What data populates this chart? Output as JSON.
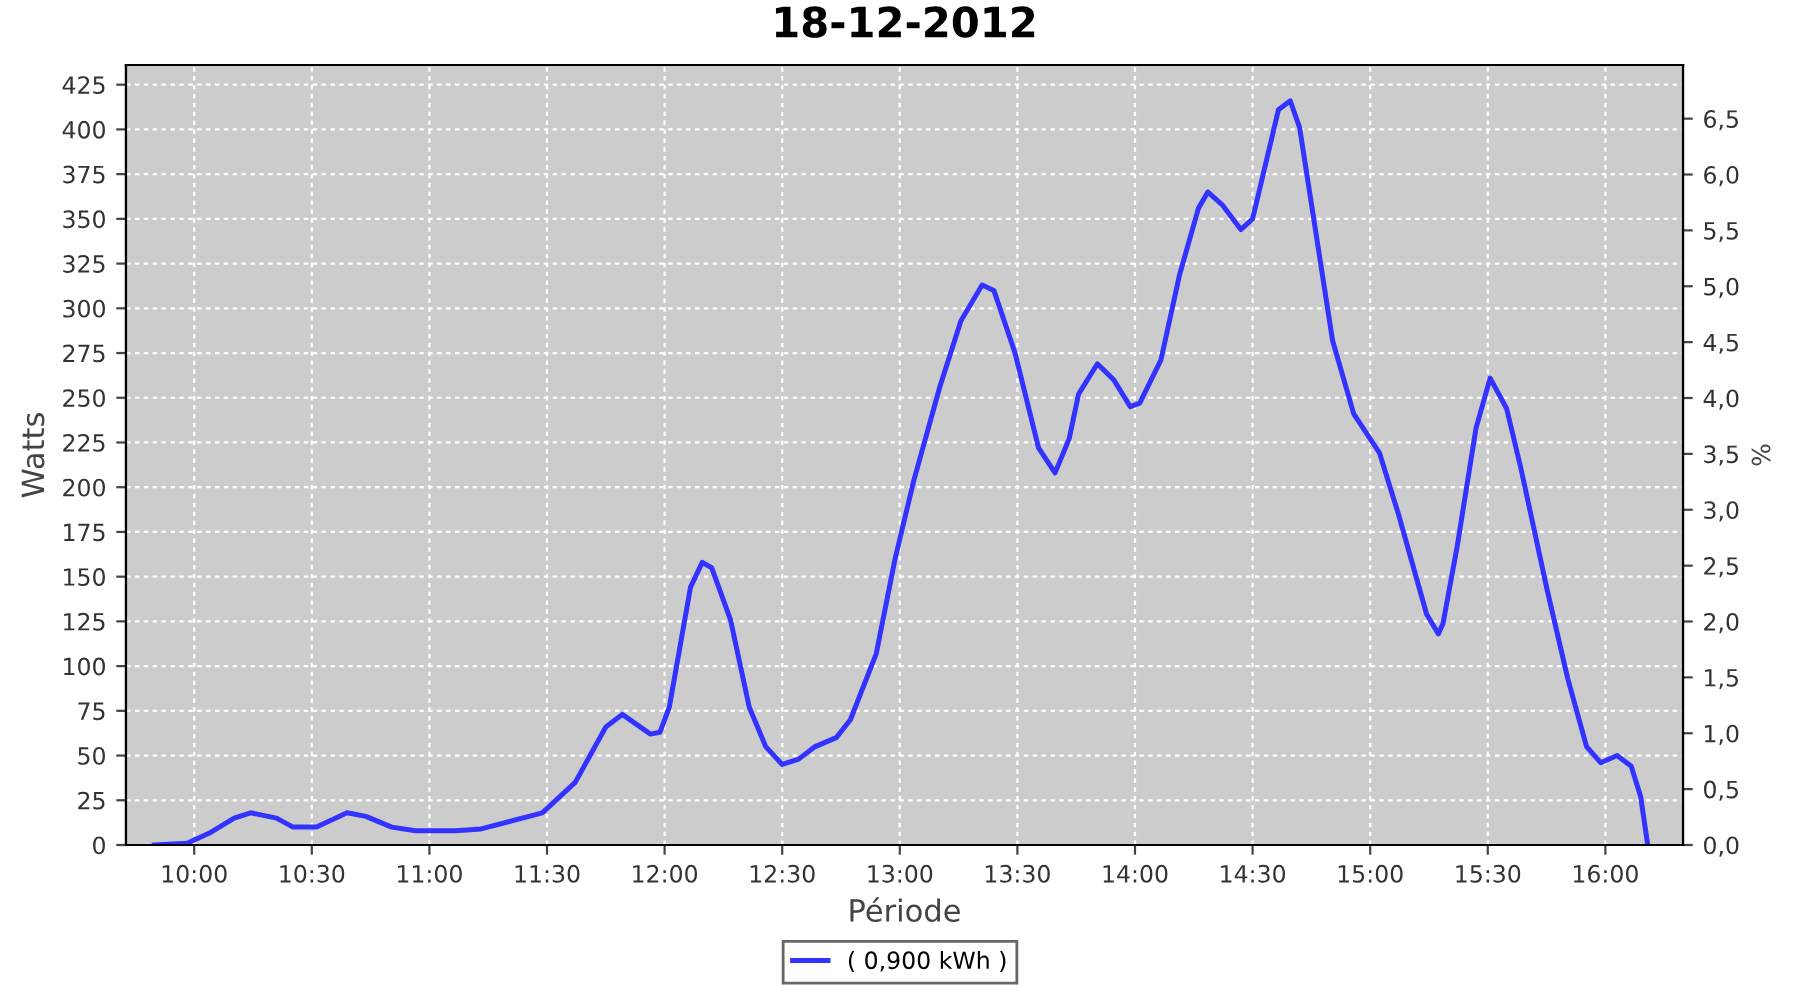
{
  "chart_data": {
    "type": "line",
    "title": "18-12-2012",
    "xlabel": "Période",
    "ylabel": "Watts",
    "y2label": "%",
    "x": [
      9.83,
      9.97,
      10.07,
      10.17,
      10.24,
      10.35,
      10.42,
      10.52,
      10.65,
      10.73,
      10.84,
      10.94,
      11.11,
      11.22,
      11.48,
      11.62,
      11.75,
      11.82,
      11.94,
      11.98,
      12.02,
      12.11,
      12.16,
      12.2,
      12.28,
      12.36,
      12.43,
      12.5,
      12.57,
      12.64,
      12.73,
      12.79,
      12.9,
      12.98,
      13.06,
      13.17,
      13.26,
      13.35,
      13.4,
      13.49,
      13.59,
      13.66,
      13.72,
      13.76,
      13.84,
      13.91,
      13.98,
      14.02,
      14.11,
      14.19,
      14.27,
      14.31,
      14.37,
      14.45,
      14.5,
      14.61,
      14.66,
      14.7,
      14.76,
      14.84,
      14.93,
      15.04,
      15.12,
      15.24,
      15.29,
      15.31,
      15.37,
      15.45,
      15.51,
      15.58,
      15.64,
      15.75,
      15.84,
      15.92,
      15.98,
      16.05,
      16.11,
      16.15,
      16.18
    ],
    "series": [
      {
        "name": "( 0,900 kWh )",
        "color": "#3333ff",
        "values": [
          0,
          1,
          7,
          15,
          18,
          15,
          10,
          10,
          18,
          16,
          10,
          8,
          8,
          9,
          18,
          35,
          66,
          73,
          62,
          63,
          77,
          144,
          158,
          155,
          126,
          77,
          55,
          45,
          48,
          55,
          60,
          70,
          107,
          160,
          204,
          256,
          293,
          313,
          310,
          275,
          222,
          208,
          227,
          252,
          269,
          260,
          245,
          247,
          271,
          319,
          356,
          365,
          358,
          344,
          350,
          411,
          416,
          401,
          350,
          282,
          241,
          219,
          185,
          129,
          118,
          124,
          167,
          233,
          261,
          244,
          211,
          144,
          93,
          55,
          46,
          50,
          44,
          27,
          0
        ]
      }
    ],
    "xlim": [
      9.71,
      16.33
    ],
    "xticks": [
      {
        "value": 10,
        "label": "10:00"
      },
      {
        "value": 10.5,
        "label": "10:30"
      },
      {
        "value": 11,
        "label": "11:00"
      },
      {
        "value": 11.5,
        "label": "11:30"
      },
      {
        "value": 12,
        "label": "12:00"
      },
      {
        "value": 12.5,
        "label": "12:30"
      },
      {
        "value": 13,
        "label": "13:00"
      },
      {
        "value": 13.5,
        "label": "13:30"
      },
      {
        "value": 14,
        "label": "14:00"
      },
      {
        "value": 14.5,
        "label": "14:30"
      },
      {
        "value": 15,
        "label": "15:00"
      },
      {
        "value": 15.5,
        "label": "15:30"
      },
      {
        "value": 16,
        "label": "16:00"
      }
    ],
    "ylim": [
      0,
      436
    ],
    "yticks": [
      0,
      25,
      50,
      75,
      100,
      125,
      150,
      175,
      200,
      225,
      250,
      275,
      300,
      325,
      350,
      375,
      400,
      425
    ],
    "y2lim": [
      0,
      6.98
    ],
    "y2ticks": [
      {
        "value": 0,
        "label": "0,0"
      },
      {
        "value": 0.5,
        "label": "0,5"
      },
      {
        "value": 1,
        "label": "1,0"
      },
      {
        "value": 1.5,
        "label": "1,5"
      },
      {
        "value": 2,
        "label": "2,0"
      },
      {
        "value": 2.5,
        "label": "2,5"
      },
      {
        "value": 3,
        "label": "3,0"
      },
      {
        "value": 3.5,
        "label": "3,5"
      },
      {
        "value": 4,
        "label": "4,0"
      },
      {
        "value": 4.5,
        "label": "4,5"
      },
      {
        "value": 5,
        "label": "5,0"
      },
      {
        "value": 5.5,
        "label": "5,5"
      },
      {
        "value": 6,
        "label": "6,0"
      },
      {
        "value": 6.5,
        "label": "6,5"
      }
    ],
    "grid": true,
    "legend": "bottom",
    "marker": "none",
    "line_style": "solid"
  }
}
